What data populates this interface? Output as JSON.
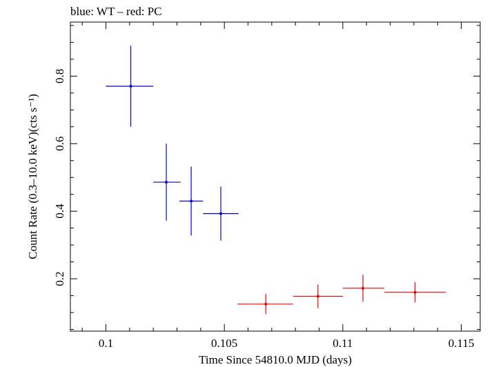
{
  "chart_data": {
    "type": "scatter",
    "title": "blue: WT – red: PC",
    "xlabel": "Time Since 54810.0 MJD (days)",
    "ylabel": "Count Rate (0.3–10.0 keV)(cts s⁻¹)",
    "xlim": [
      0.0985,
      0.1158
    ],
    "ylim": [
      0.045,
      0.96
    ],
    "x_ticks": [
      0.1,
      0.105,
      0.11,
      0.115
    ],
    "x_tick_labels": [
      "0.1",
      "0.105",
      "0.11",
      "0.115"
    ],
    "y_ticks": [
      0.2,
      0.4,
      0.6,
      0.8
    ],
    "y_tick_labels": [
      "0.2",
      "0.4",
      "0.6",
      "0.8"
    ],
    "grid": false,
    "series": [
      {
        "color": "#0000cc",
        "points": [
          {
            "x": 0.10105,
            "xerr_lo": 0.00105,
            "xerr_hi": 0.00095,
            "y": 0.77,
            "yerr": 0.12
          },
          {
            "x": 0.10255,
            "xerr_lo": 0.00055,
            "xerr_hi": 0.0006,
            "y": 0.486,
            "yerr": 0.114
          },
          {
            "x": 0.1036,
            "xerr_lo": 0.0005,
            "xerr_hi": 0.0005,
            "y": 0.43,
            "yerr": 0.102
          },
          {
            "x": 0.10485,
            "xerr_lo": 0.00075,
            "xerr_hi": 0.00075,
            "y": 0.393,
            "yerr": 0.08
          }
        ]
      },
      {
        "color": "#ee0000",
        "points": [
          {
            "x": 0.10675,
            "xerr_lo": 0.0012,
            "xerr_hi": 0.00115,
            "y": 0.125,
            "yerr": 0.03
          },
          {
            "x": 0.10895,
            "xerr_lo": 0.00105,
            "xerr_hi": 0.00105,
            "y": 0.148,
            "yerr": 0.035
          },
          {
            "x": 0.11085,
            "xerr_lo": 0.00085,
            "xerr_hi": 0.0009,
            "y": 0.172,
            "yerr": 0.04
          },
          {
            "x": 0.11305,
            "xerr_lo": 0.0013,
            "xerr_hi": 0.0013,
            "y": 0.16,
            "yerr": 0.03
          }
        ]
      }
    ]
  }
}
